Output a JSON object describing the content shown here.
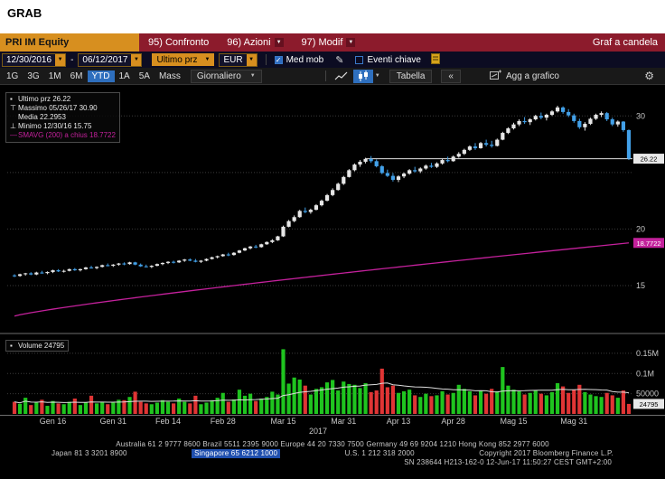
{
  "titlebar": {
    "title": "GRAB"
  },
  "menubar": {
    "ticker": "PRI IM Equity",
    "items": [
      {
        "label": "95) Confronto",
        "has_dropdown": false
      },
      {
        "label": "96) Azioni",
        "has_dropdown": true
      },
      {
        "label": "97) Modif",
        "has_dropdown": true
      }
    ],
    "right_label": "Graf a candela"
  },
  "fieldbar": {
    "date_from": "12/30/2016",
    "date_sep": "-",
    "date_to": "06/12/2017",
    "field_selector": "Ultimo prz",
    "currency": "EUR",
    "med_mob_label": "Med mob",
    "med_mob_checked": true,
    "eventi_label": "Eventi chiave",
    "eventi_checked": false
  },
  "toolbar": {
    "periods": [
      "1G",
      "3G",
      "1M",
      "6M",
      "YTD",
      "1A",
      "5A",
      "Mass"
    ],
    "active_period": "YTD",
    "frequency": "Giornaliero",
    "tabella_label": "Tabella",
    "collapse_label": "«",
    "agg_label": "Agg a grafico"
  },
  "chart_data": {
    "type": "candlestick",
    "title": "PRI IM Equity — Graf a candela (YTD, Giornaliero)",
    "legend": [
      {
        "label": "Ultimo prz",
        "value": "26.22",
        "marker": "square",
        "color": "#e8e8e8"
      },
      {
        "label": "Massimo 05/26/17",
        "value": "30.90",
        "marker": "top",
        "color": "#e8e8e8"
      },
      {
        "label": "Media",
        "value": "22.2953",
        "marker": "none",
        "color": "#e8e8e8"
      },
      {
        "label": "Minimo 12/30/16",
        "value": "15.75",
        "marker": "bottom",
        "color": "#e8e8e8"
      },
      {
        "label": "SMAVG (200) a chius",
        "value": "18.7722",
        "marker": "line",
        "color": "#c4219c"
      }
    ],
    "volume_legend": {
      "label": "Volume",
      "value": "24795"
    },
    "last_price": 26.22,
    "last_volume": 24795,
    "ylim": [
      11.0,
      32.5
    ],
    "vol_max": 190000,
    "price_grid": [
      15,
      20,
      25,
      30
    ],
    "price_ticks": [
      {
        "value": 30,
        "label": "30"
      },
      {
        "value": 20,
        "label": "20"
      },
      {
        "value": 15,
        "label": "15"
      }
    ],
    "vol_ticks": [
      {
        "value": 150000,
        "label": "0.15M"
      },
      {
        "value": 100000,
        "label": "0.1M"
      },
      {
        "value": 50000,
        "label": "50000"
      }
    ],
    "x_ticks": [
      {
        "i": 7,
        "label": "Gen 16"
      },
      {
        "i": 18,
        "label": "Gen 31"
      },
      {
        "i": 28,
        "label": "Feb 14"
      },
      {
        "i": 38,
        "label": "Feb 28"
      },
      {
        "i": 49,
        "label": "Mar 15"
      },
      {
        "i": 60,
        "label": "Mar 31"
      },
      {
        "i": 70,
        "label": "Apr 13"
      },
      {
        "i": 80,
        "label": "Apr 28"
      },
      {
        "i": 91,
        "label": "Mag 15"
      },
      {
        "i": 102,
        "label": "Mag 31"
      }
    ],
    "year_label": "2017",
    "sma": {
      "start": 12.3,
      "end": 18.7722,
      "curve": 0.85
    },
    "colors": {
      "up_candle": "#e6e6e6",
      "down_candle": "#42a0e8",
      "vol_up": "#1fc41f",
      "vol_down": "#e03535",
      "sma": "#c4219c",
      "price_line": "#e0e0e0",
      "grid": "#3a3a3a",
      "axis_text": "#c8c8c8",
      "accent_blue": "#2e6fbe",
      "amber": "#d78f1f"
    },
    "ohlc": [
      [
        15.9,
        16.0,
        15.75,
        15.85
      ],
      [
        15.85,
        16.05,
        15.78,
        16.0
      ],
      [
        16.0,
        16.12,
        15.88,
        16.08
      ],
      [
        16.08,
        16.18,
        15.92,
        15.98
      ],
      [
        15.98,
        16.22,
        15.92,
        16.15
      ],
      [
        16.15,
        16.3,
        16.05,
        16.1
      ],
      [
        16.1,
        16.25,
        16.0,
        16.2
      ],
      [
        16.2,
        16.4,
        16.1,
        16.35
      ],
      [
        16.35,
        16.45,
        16.2,
        16.25
      ],
      [
        16.25,
        16.4,
        16.15,
        16.3
      ],
      [
        16.3,
        16.5,
        16.25,
        16.45
      ],
      [
        16.45,
        16.55,
        16.3,
        16.35
      ],
      [
        16.35,
        16.5,
        16.25,
        16.45
      ],
      [
        16.45,
        16.65,
        16.4,
        16.6
      ],
      [
        16.6,
        16.75,
        16.5,
        16.55
      ],
      [
        16.55,
        16.7,
        16.45,
        16.65
      ],
      [
        16.65,
        16.85,
        16.6,
        16.8
      ],
      [
        16.8,
        16.95,
        16.7,
        16.75
      ],
      [
        16.75,
        16.9,
        16.65,
        16.85
      ],
      [
        16.85,
        17.0,
        16.75,
        16.95
      ],
      [
        16.95,
        17.05,
        16.8,
        16.9
      ],
      [
        16.9,
        17.1,
        16.85,
        17.05
      ],
      [
        17.05,
        17.1,
        16.8,
        16.85
      ],
      [
        16.85,
        16.95,
        16.65,
        16.7
      ],
      [
        16.7,
        16.85,
        16.6,
        16.65
      ],
      [
        16.65,
        16.8,
        16.55,
        16.75
      ],
      [
        16.75,
        16.95,
        16.7,
        16.9
      ],
      [
        16.9,
        17.05,
        16.8,
        17.0
      ],
      [
        17.0,
        17.15,
        16.9,
        17.1
      ],
      [
        17.1,
        17.2,
        16.95,
        17.05
      ],
      [
        17.05,
        17.25,
        17.0,
        17.2
      ],
      [
        17.2,
        17.35,
        17.1,
        17.3
      ],
      [
        17.3,
        17.4,
        17.15,
        17.2
      ],
      [
        17.2,
        17.35,
        17.05,
        17.1
      ],
      [
        17.1,
        17.25,
        17.0,
        17.2
      ],
      [
        17.2,
        17.4,
        17.15,
        17.35
      ],
      [
        17.35,
        17.55,
        17.3,
        17.5
      ],
      [
        17.5,
        17.65,
        17.4,
        17.6
      ],
      [
        17.6,
        17.8,
        17.55,
        17.75
      ],
      [
        17.75,
        17.9,
        17.6,
        17.7
      ],
      [
        17.7,
        17.95,
        17.65,
        17.9
      ],
      [
        17.9,
        18.15,
        17.85,
        18.1
      ],
      [
        18.1,
        18.35,
        18.05,
        18.3
      ],
      [
        18.3,
        18.5,
        18.2,
        18.45
      ],
      [
        18.45,
        18.6,
        18.3,
        18.4
      ],
      [
        18.4,
        18.7,
        18.35,
        18.65
      ],
      [
        18.65,
        18.9,
        18.6,
        18.85
      ],
      [
        18.85,
        19.1,
        18.75,
        19.0
      ],
      [
        19.0,
        19.4,
        18.95,
        19.35
      ],
      [
        19.35,
        20.3,
        19.3,
        20.2
      ],
      [
        20.2,
        20.8,
        20.15,
        20.7
      ],
      [
        20.7,
        21.2,
        20.6,
        21.05
      ],
      [
        21.05,
        21.7,
        21.0,
        21.6
      ],
      [
        21.6,
        21.9,
        21.4,
        21.5
      ],
      [
        21.5,
        21.8,
        21.35,
        21.7
      ],
      [
        21.7,
        22.2,
        21.65,
        22.1
      ],
      [
        22.1,
        22.6,
        22.0,
        22.5
      ],
      [
        22.5,
        23.1,
        22.45,
        23.0
      ],
      [
        23.0,
        23.6,
        22.9,
        23.45
      ],
      [
        23.45,
        24.1,
        23.4,
        24.0
      ],
      [
        24.0,
        24.7,
        23.9,
        24.6
      ],
      [
        24.6,
        25.3,
        24.55,
        25.2
      ],
      [
        25.2,
        25.8,
        25.1,
        25.7
      ],
      [
        25.7,
        26.1,
        25.5,
        25.95
      ],
      [
        25.95,
        26.3,
        25.8,
        26.2
      ],
      [
        26.2,
        26.45,
        25.85,
        26.0
      ],
      [
        26.0,
        26.15,
        25.45,
        25.55
      ],
      [
        25.55,
        25.65,
        24.85,
        24.95
      ],
      [
        24.95,
        25.25,
        24.6,
        24.7
      ],
      [
        24.7,
        24.95,
        24.2,
        24.35
      ],
      [
        24.35,
        24.75,
        24.15,
        24.65
      ],
      [
        24.65,
        25.0,
        24.5,
        24.9
      ],
      [
        24.9,
        25.3,
        24.8,
        25.2
      ],
      [
        25.2,
        25.5,
        25.0,
        25.1
      ],
      [
        25.1,
        25.45,
        24.95,
        25.35
      ],
      [
        25.35,
        25.7,
        25.25,
        25.6
      ],
      [
        25.6,
        25.85,
        25.4,
        25.5
      ],
      [
        25.5,
        25.9,
        25.4,
        25.8
      ],
      [
        25.8,
        26.2,
        25.7,
        26.1
      ],
      [
        26.1,
        26.4,
        25.9,
        26.0
      ],
      [
        26.0,
        26.5,
        25.95,
        26.4
      ],
      [
        26.4,
        26.8,
        26.3,
        26.65
      ],
      [
        26.65,
        27.1,
        26.55,
        27.0
      ],
      [
        27.0,
        27.4,
        26.9,
        27.3
      ],
      [
        27.3,
        27.6,
        27.0,
        27.15
      ],
      [
        27.15,
        27.7,
        27.1,
        27.6
      ],
      [
        27.6,
        27.9,
        27.3,
        27.45
      ],
      [
        27.45,
        27.8,
        27.2,
        27.35
      ],
      [
        27.35,
        28.0,
        27.3,
        27.9
      ],
      [
        27.9,
        28.6,
        27.85,
        28.5
      ],
      [
        28.5,
        29.0,
        28.4,
        28.9
      ],
      [
        28.9,
        29.4,
        28.8,
        29.25
      ],
      [
        29.25,
        29.7,
        29.1,
        29.55
      ],
      [
        29.55,
        29.9,
        29.3,
        29.45
      ],
      [
        29.45,
        29.8,
        29.2,
        29.7
      ],
      [
        29.7,
        30.1,
        29.6,
        30.0
      ],
      [
        30.0,
        30.3,
        29.7,
        29.85
      ],
      [
        29.85,
        30.2,
        29.6,
        30.1
      ],
      [
        30.1,
        30.5,
        30.0,
        30.4
      ],
      [
        30.4,
        30.9,
        30.3,
        30.75
      ],
      [
        30.75,
        30.85,
        30.2,
        30.35
      ],
      [
        30.35,
        30.6,
        29.9,
        30.05
      ],
      [
        30.05,
        30.2,
        29.4,
        29.55
      ],
      [
        29.55,
        29.75,
        28.85,
        29.0
      ],
      [
        29.0,
        29.45,
        28.7,
        29.3
      ],
      [
        29.3,
        29.85,
        29.2,
        29.75
      ],
      [
        29.75,
        30.2,
        29.65,
        30.1
      ],
      [
        30.1,
        30.4,
        29.9,
        30.25
      ],
      [
        30.25,
        30.35,
        29.55,
        29.7
      ],
      [
        29.7,
        29.85,
        29.1,
        29.25
      ],
      [
        29.25,
        29.6,
        29.05,
        29.5
      ],
      [
        29.5,
        29.55,
        28.6,
        28.75
      ],
      [
        28.75,
        28.8,
        26.1,
        26.22
      ]
    ],
    "volume": [
      30000,
      25000,
      40000,
      22000,
      28000,
      35000,
      20000,
      32000,
      26000,
      24000,
      30000,
      38000,
      22000,
      28000,
      45000,
      26000,
      30000,
      24000,
      28000,
      35000,
      34000,
      42000,
      55000,
      30000,
      26000,
      24000,
      28000,
      34000,
      30000,
      26000,
      38000,
      30000,
      26000,
      45000,
      24000,
      28000,
      34000,
      40000,
      52000,
      30000,
      36000,
      60000,
      45000,
      50000,
      32000,
      38000,
      42000,
      55000,
      48000,
      160000,
      75000,
      90000,
      85000,
      70000,
      48000,
      62000,
      66000,
      78000,
      84000,
      58000,
      80000,
      74000,
      72000,
      64000,
      76000,
      54000,
      58000,
      112000,
      66000,
      70000,
      52000,
      56000,
      60000,
      46000,
      42000,
      50000,
      44000,
      46000,
      56000,
      48000,
      52000,
      72000,
      62000,
      56000,
      46000,
      58000,
      50000,
      62000,
      56000,
      116000,
      70000,
      60000,
      56000,
      48000,
      52000,
      58000,
      50000,
      46000,
      54000,
      76000,
      68000,
      52000,
      60000,
      72000,
      54000,
      48000,
      44000,
      42000,
      52000,
      46000,
      40000,
      58000,
      24795
    ]
  },
  "footer": {
    "line1": "Australia 61 2 9777 8600 Brazil 5511 2395 9000 Europe 44 20 7330 7500 Germany 49 69 9204 1210 Hong Kong 852 2977 6000",
    "line2": [
      "Japan 81 3 3201 8900",
      "Singapore 65 6212 1000",
      "U.S. 1 212 318 2000",
      "Copyright 2017 Bloomberg Finance L.P."
    ],
    "line3": "SN 238644 H213-162-0 12-Jun-17 11:50:27 CEST   GMT+2:00"
  }
}
